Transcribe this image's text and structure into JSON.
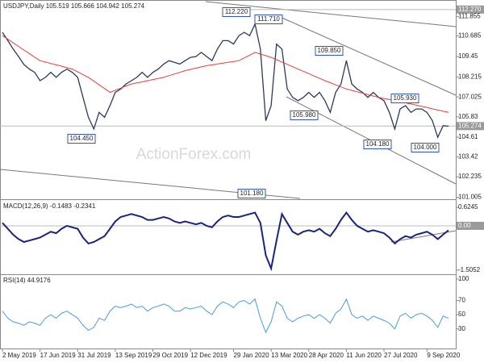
{
  "chart_data": [
    {
      "type": "line",
      "title": "USDJPY,Daily  105.519 105.666 104.942 105.274",
      "watermark": "ActionForex.com",
      "categories": [
        "2 May 2019",
        null,
        null,
        null,
        null,
        null,
        null,
        "17 Jun 2019",
        null,
        null,
        null,
        null,
        null,
        null,
        "31 Jul 2019",
        null,
        null,
        null,
        null,
        null,
        null,
        "13 Sep 2019",
        null,
        null,
        null,
        null,
        null,
        null,
        "29 Oct 2019",
        null,
        null,
        null,
        null,
        null,
        null,
        "12 Dec 2019",
        null,
        null,
        null,
        null,
        null,
        null,
        null,
        "29 Jan 2020",
        null,
        null,
        null,
        null,
        null,
        null,
        "13 Mar 2020",
        null,
        null,
        null,
        null,
        null,
        null,
        "28 Apr 2020",
        null,
        null,
        null,
        null,
        null,
        null,
        "11 Jun 2020",
        null,
        null,
        null,
        null,
        null,
        null,
        "27 Jul 2020",
        null,
        null,
        null,
        null,
        null,
        null,
        null,
        "9 Sep 2020",
        null,
        null,
        null,
        null
      ],
      "series": [
        {
          "color": "#2b3a5c",
          "values": [
            110.9,
            110.4,
            109.9,
            109.45,
            108.97,
            108.7,
            108.5,
            108.0,
            108.2,
            108.5,
            108.2,
            108.5,
            108.7,
            108.5,
            108.2,
            107.0,
            105.8,
            105.1,
            106.1,
            105.8,
            106.5,
            107.3,
            107.5,
            107.8,
            108.0,
            108.2,
            108.5,
            108.2,
            108.5,
            108.7,
            109.0,
            109.2,
            109.1,
            109.0,
            109.2,
            109.4,
            109.45,
            109.7,
            109.45,
            109.2,
            109.9,
            110.4,
            110.4,
            110.2,
            110.7,
            110.9,
            110.7,
            111.4,
            109.9,
            105.6,
            106.5,
            110.2,
            109.9,
            107.5,
            107.0,
            106.8,
            107.0,
            107.3,
            107.0,
            107.3,
            106.8,
            106.1,
            107.3,
            107.8,
            109.2,
            107.8,
            107.5,
            107.3,
            107.0,
            107.3,
            107.0,
            106.8,
            106.1,
            105.1,
            106.3,
            106.5,
            106.1,
            106.3,
            106.3,
            106.1,
            105.6,
            104.6,
            105.3,
            105.27
          ]
        },
        {
          "color": "#e0403a",
          "values": [
            110.7,
            110.49,
            110.27,
            110.06,
            109.84,
            109.63,
            109.41,
            109.2,
            109.12,
            109.03,
            108.95,
            108.87,
            108.78,
            108.7,
            108.53,
            108.37,
            108.2,
            107.98,
            107.75,
            107.53,
            107.3,
            107.43,
            107.55,
            107.68,
            107.8,
            107.87,
            107.93,
            108.0,
            108.07,
            108.13,
            108.2,
            108.3,
            108.4,
            108.5,
            108.6,
            108.68,
            108.75,
            108.83,
            108.9,
            108.95,
            109.0,
            109.05,
            109.1,
            109.15,
            109.2,
            109.37,
            109.53,
            109.7,
            109.6,
            109.5,
            109.4,
            109.26,
            109.12,
            108.98,
            108.84,
            108.7,
            108.56,
            108.42,
            108.28,
            108.14,
            108.0,
            107.88,
            107.75,
            107.63,
            107.5,
            107.42,
            107.33,
            107.25,
            107.17,
            107.08,
            107.0,
            106.93,
            106.87,
            106.8,
            106.73,
            106.67,
            106.6,
            106.53,
            106.46,
            106.39,
            106.31,
            106.24,
            106.17,
            106.1
          ]
        }
      ],
      "annotations": [
        {
          "value": 112.22,
          "label": "112.220"
        },
        {
          "value": 111.71,
          "label": "111.710"
        },
        {
          "value": 109.85,
          "label": "109.850"
        },
        {
          "value": 105.98,
          "label": "105.980"
        },
        {
          "value": 105.93,
          "label": "105.930"
        },
        {
          "value": 104.45,
          "label": "104.450"
        },
        {
          "value": 104.18,
          "label": "104.180"
        },
        {
          "value": 104.0,
          "label": "104.000"
        },
        {
          "value": 101.18,
          "label": "101.180"
        }
      ],
      "ylim": [
        100.98,
        112.6
      ],
      "yticks": [
        {
          "value": 112.27,
          "label": "112.270"
        },
        111.855,
        110.685,
        109.45,
        108.215,
        107.025,
        105.83,
        105.274,
        104.61,
        103.42,
        102.235,
        {
          "value": 101.005,
          "label": "101.005"
        }
      ]
    },
    {
      "type": "line",
      "title": "MACD(12,26,9) -0.1483 -0.2341",
      "series": [
        {
          "color": "#1a237e",
          "values": [
            0.1,
            -0.1,
            -0.3,
            -0.45,
            -0.55,
            -0.5,
            -0.45,
            -0.4,
            -0.3,
            -0.2,
            -0.25,
            -0.1,
            0.0,
            -0.05,
            -0.1,
            -0.4,
            -0.6,
            -0.55,
            -0.45,
            -0.35,
            -0.1,
            0.15,
            0.3,
            0.35,
            0.4,
            0.35,
            0.3,
            0.2,
            0.2,
            0.25,
            0.3,
            0.25,
            0.15,
            0.1,
            0.15,
            0.1,
            0.05,
            0.1,
            0.0,
            -0.05,
            0.15,
            0.3,
            0.35,
            0.3,
            0.3,
            0.35,
            0.4,
            0.45,
            0.1,
            -1.0,
            -1.45,
            -0.5,
            0.4,
            0.1,
            -0.2,
            -0.3,
            -0.2,
            -0.15,
            -0.2,
            -0.1,
            -0.25,
            -0.35,
            -0.1,
            0.2,
            0.45,
            0.2,
            0.0,
            -0.1,
            -0.2,
            -0.15,
            -0.2,
            -0.25,
            -0.4,
            -0.6,
            -0.45,
            -0.35,
            -0.4,
            -0.3,
            -0.25,
            -0.2,
            -0.3,
            -0.45,
            -0.3,
            -0.15
          ]
        }
      ],
      "ylim": [
        -1.59,
        0.82
      ],
      "yticks": [
        0.6245,
        {
          "value": 0,
          "label": "0.00"
        },
        -1.5052
      ]
    },
    {
      "type": "line",
      "title": "RSI(14) 44.9176",
      "series": [
        {
          "color": "#4a9ae0",
          "values": [
            55,
            45,
            40,
            38,
            35,
            40,
            38,
            35,
            45,
            50,
            45,
            52,
            55,
            50,
            45,
            35,
            28,
            32,
            45,
            42,
            55,
            62,
            60,
            62,
            65,
            60,
            62,
            55,
            60,
            62,
            65,
            62,
            55,
            55,
            60,
            58,
            60,
            62,
            55,
            50,
            62,
            68,
            65,
            60,
            68,
            70,
            65,
            72,
            45,
            25,
            40,
            68,
            62,
            45,
            40,
            45,
            48,
            50,
            45,
            50,
            45,
            38,
            52,
            58,
            72,
            50,
            45,
            48,
            42,
            48,
            45,
            42,
            38,
            30,
            48,
            52,
            45,
            50,
            52,
            48,
            42,
            32,
            48,
            44.9
          ]
        }
      ],
      "ylim": [
        16,
        104.6
      ],
      "yticks": [
        100,
        70,
        50,
        30
      ]
    }
  ]
}
